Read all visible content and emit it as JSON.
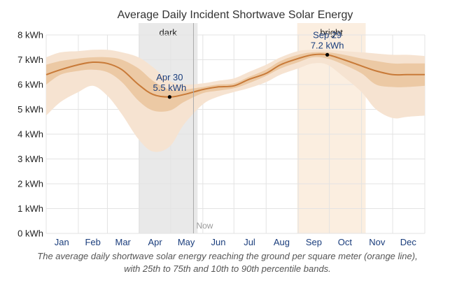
{
  "chart_data": {
    "type": "line",
    "title": "Average Daily Incident Shortwave Solar Energy",
    "caption": "The average daily shortwave solar energy reaching the ground per square meter (orange line), with 25th to 75th and 10th to 90th percentile bands.",
    "y_unit": "kWh",
    "ylim": [
      0,
      8
    ],
    "yticks": [
      {
        "v": 0,
        "label": "0 kWh"
      },
      {
        "v": 1,
        "label": "1 kWh"
      },
      {
        "v": 2,
        "label": "2 kWh"
      },
      {
        "v": 3,
        "label": "3 kWh"
      },
      {
        "v": 4,
        "label": "4 kWh"
      },
      {
        "v": 5,
        "label": "5 kWh"
      },
      {
        "v": 6,
        "label": "6 kWh"
      },
      {
        "v": 7,
        "label": "7 kWh"
      },
      {
        "v": 8,
        "label": "8 kWh"
      }
    ],
    "xlim": [
      1,
      366
    ],
    "months": [
      {
        "label": "Jan",
        "start": 1,
        "mid": 16
      },
      {
        "label": "Feb",
        "start": 32,
        "mid": 46
      },
      {
        "label": "Mar",
        "start": 60,
        "mid": 75
      },
      {
        "label": "Apr",
        "start": 91,
        "mid": 106
      },
      {
        "label": "May",
        "start": 121,
        "mid": 136
      },
      {
        "label": "Jun",
        "start": 152,
        "mid": 167
      },
      {
        "label": "Jul",
        "start": 182,
        "mid": 197
      },
      {
        "label": "Aug",
        "start": 213,
        "mid": 228
      },
      {
        "label": "Sep",
        "start": 244,
        "mid": 259
      },
      {
        "label": "Oct",
        "start": 274,
        "mid": 289
      },
      {
        "label": "Nov",
        "start": 305,
        "mid": 320
      },
      {
        "label": "Dec",
        "start": 335,
        "mid": 350
      }
    ],
    "month_end": 366,
    "periods": [
      {
        "label": "dark",
        "start": 90,
        "end": 147
      },
      {
        "label": "bright",
        "start": 243,
        "end": 309
      }
    ],
    "now": {
      "label": "Now",
      "day": 143
    },
    "x": [
      1,
      15,
      32,
      46,
      60,
      74,
      90,
      104,
      120,
      134,
      152,
      166,
      182,
      196,
      213,
      227,
      244,
      258,
      272,
      288,
      305,
      319,
      335,
      349,
      366
    ],
    "series": [
      {
        "name": "average",
        "values": [
          6.4,
          6.6,
          6.8,
          6.9,
          6.85,
          6.6,
          6.0,
          5.6,
          5.5,
          5.6,
          5.8,
          5.9,
          5.95,
          6.2,
          6.45,
          6.8,
          7.05,
          7.2,
          7.2,
          7.0,
          6.75,
          6.55,
          6.4,
          6.4,
          6.4
        ]
      },
      {
        "name": "p25",
        "values": [
          6.0,
          6.4,
          6.55,
          6.6,
          6.5,
          6.1,
          5.35,
          4.95,
          4.95,
          5.3,
          5.65,
          5.75,
          5.85,
          6.05,
          6.35,
          6.65,
          6.9,
          7.1,
          7.05,
          6.8,
          6.45,
          6.0,
          5.9,
          5.9,
          5.95
        ]
      },
      {
        "name": "p75",
        "values": [
          6.8,
          6.95,
          7.05,
          7.1,
          7.1,
          7.0,
          6.65,
          6.15,
          5.8,
          5.8,
          5.9,
          6.0,
          6.05,
          6.3,
          6.6,
          6.95,
          7.2,
          7.3,
          7.3,
          7.2,
          7.05,
          6.95,
          6.85,
          6.85,
          6.85
        ]
      },
      {
        "name": "p10",
        "values": [
          4.75,
          5.3,
          5.7,
          5.95,
          5.55,
          4.8,
          3.8,
          3.3,
          3.5,
          4.4,
          5.2,
          5.5,
          5.7,
          5.85,
          6.1,
          6.4,
          6.65,
          6.85,
          6.8,
          6.3,
          5.7,
          5.0,
          4.65,
          4.7,
          4.75
        ]
      },
      {
        "name": "p90",
        "values": [
          7.1,
          7.3,
          7.35,
          7.4,
          7.4,
          7.3,
          7.1,
          6.7,
          6.15,
          6.0,
          6.05,
          6.15,
          6.25,
          6.5,
          6.8,
          7.1,
          7.35,
          7.4,
          7.4,
          7.35,
          7.3,
          7.25,
          7.2,
          7.2,
          7.15
        ]
      }
    ],
    "annotations": [
      {
        "date": "Apr 30",
        "value_label": "5.5 kWh",
        "day": 120,
        "value": 5.5
      },
      {
        "date": "Sep 29",
        "value_label": "7.2 kWh",
        "day": 272,
        "value": 7.2
      }
    ],
    "colors": {
      "line": "#c87a38",
      "band_inner": "#ecc9a4",
      "band_outer": "#f6e3d1",
      "dark_region": "#e9e9e9",
      "bright_region": "#fbeee0",
      "grid": "#e3e3e3",
      "now_line": "#aaaaaa"
    }
  }
}
